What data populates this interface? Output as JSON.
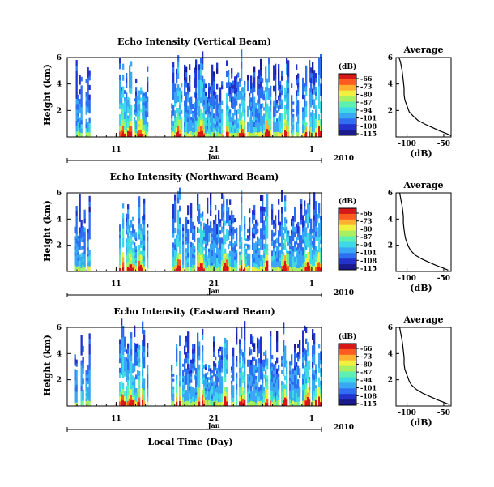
{
  "colors": {
    "colormap": [
      "#1a1a8c",
      "#2233cc",
      "#2e6ef0",
      "#38a8f5",
      "#3fd8e6",
      "#5ef0b0",
      "#a8f060",
      "#f0f040",
      "#ffb030",
      "#ff5a20",
      "#d61818"
    ],
    "profile_line": "#000000"
  },
  "chart_data": [
    {
      "type": "heatmap",
      "title": "Echo Intensity (Vertical Beam)",
      "ylabel": "Height (km)",
      "ylim": [
        0,
        6
      ],
      "yticks": [
        "6",
        "4",
        "2"
      ],
      "xticks": [
        "11",
        "21",
        "1"
      ],
      "xlim_days": [
        6,
        32
      ],
      "month_label": "Jan",
      "year_label": "2010",
      "colorbar": {
        "label": "(dB)",
        "levels": [
          "-66",
          "-73",
          "-80",
          "-87",
          "-94",
          "-101",
          "-108",
          "-115"
        ]
      },
      "data_periods_days": [
        [
          6.7,
          8.2
        ],
        [
          11.3,
          14.2
        ],
        [
          16.6,
          32.0
        ]
      ],
      "surface_hotspots_days": [
        11.6,
        12.4,
        13.4,
        17.3,
        19.6,
        22.1,
        23.8,
        26.4,
        28.2,
        30.5,
        31.6
      ]
    },
    {
      "type": "line",
      "title": "Average",
      "xlabel": "(dB)",
      "xlim": [
        -115,
        -40
      ],
      "ylim": [
        0,
        6
      ],
      "xticks": [
        "-100",
        "-50"
      ],
      "yticks": [
        "6",
        "4",
        "2"
      ],
      "series": [
        {
          "x": [
            -40,
            -46,
            -55,
            -65,
            -75,
            -85,
            -92,
            -97,
            -99,
            -101,
            -103,
            -104,
            -104,
            -105,
            -106,
            -107,
            -108,
            -109,
            -111
          ],
          "y": [
            0.1,
            0.25,
            0.45,
            0.7,
            0.95,
            1.25,
            1.6,
            1.9,
            2.2,
            2.5,
            2.8,
            3.2,
            3.7,
            4.2,
            4.7,
            5.1,
            5.4,
            5.7,
            6.0
          ]
        }
      ]
    },
    {
      "type": "heatmap",
      "title": "Echo Intensity (Northward Beam)",
      "ylabel": "Height (km)",
      "ylim": [
        0,
        6
      ],
      "yticks": [
        "6",
        "4",
        "2"
      ],
      "xticks": [
        "11",
        "21",
        "1"
      ],
      "xlim_days": [
        6,
        32
      ],
      "month_label": "Jan",
      "year_label": "2010",
      "colorbar": {
        "label": "(dB)",
        "levels": [
          "-66",
          "-73",
          "-80",
          "-87",
          "-94",
          "-101",
          "-108",
          "-115"
        ]
      },
      "data_periods_days": [
        [
          6.7,
          8.2
        ],
        [
          11.3,
          14.2
        ],
        [
          16.6,
          32.0
        ]
      ],
      "surface_hotspots_days": [
        11.6,
        12.4,
        13.4,
        17.3,
        19.6,
        22.1,
        23.8,
        26.4,
        28.2,
        30.5,
        31.6
      ]
    },
    {
      "type": "line",
      "title": "Average",
      "xlabel": "(dB)",
      "xlim": [
        -115,
        -40
      ],
      "ylim": [
        0,
        6
      ],
      "xticks": [
        "-100",
        "-50"
      ],
      "yticks": [
        "6",
        "4",
        "2"
      ],
      "series": [
        {
          "x": [
            -44,
            -50,
            -60,
            -70,
            -80,
            -89,
            -95,
            -98,
            -100,
            -102,
            -103,
            -104,
            -105,
            -105,
            -106,
            -107,
            -108,
            -109,
            -110
          ],
          "y": [
            0.1,
            0.25,
            0.45,
            0.7,
            0.95,
            1.25,
            1.6,
            1.9,
            2.2,
            2.5,
            2.8,
            3.2,
            3.7,
            4.2,
            4.7,
            5.1,
            5.4,
            5.7,
            6.0
          ]
        }
      ]
    },
    {
      "type": "heatmap",
      "title": "Echo Intensity (Eastward Beam)",
      "ylabel": "Height (km)",
      "xlabel": "Local Time (Day)",
      "ylim": [
        0,
        6
      ],
      "yticks": [
        "6",
        "4",
        "2"
      ],
      "xticks": [
        "11",
        "21",
        "1"
      ],
      "xlim_days": [
        6,
        32
      ],
      "month_label": "Jan",
      "year_label": "2010",
      "colorbar": {
        "label": "(dB)",
        "levels": [
          "-66",
          "-73",
          "-80",
          "-87",
          "-94",
          "-101",
          "-108",
          "-115"
        ]
      },
      "data_periods_days": [
        [
          6.7,
          8.2
        ],
        [
          11.3,
          14.2
        ],
        [
          16.6,
          32.0
        ]
      ],
      "surface_hotspots_days": [
        11.6,
        12.4,
        13.4,
        17.3,
        19.6,
        22.1,
        23.8,
        26.4,
        28.2,
        30.5,
        31.6
      ]
    },
    {
      "type": "line",
      "title": "Average",
      "xlabel": "(dB)",
      "xlim": [
        -115,
        -40
      ],
      "ylim": [
        0,
        6
      ],
      "xticks": [
        "-100",
        "-50"
      ],
      "yticks": [
        "6",
        "4",
        "2"
      ],
      "series": [
        {
          "x": [
            -42,
            -48,
            -58,
            -68,
            -78,
            -87,
            -94,
            -97,
            -99,
            -101,
            -103,
            -104,
            -104,
            -105,
            -106,
            -107,
            -108,
            -109,
            -110
          ],
          "y": [
            0.1,
            0.25,
            0.45,
            0.7,
            0.95,
            1.25,
            1.6,
            1.9,
            2.2,
            2.5,
            2.8,
            3.2,
            3.7,
            4.2,
            4.7,
            5.1,
            5.4,
            5.7,
            6.0
          ]
        }
      ]
    }
  ]
}
